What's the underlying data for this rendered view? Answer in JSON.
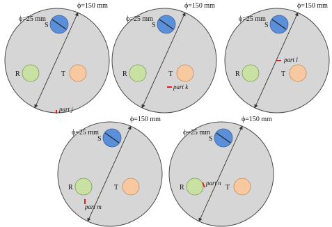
{
  "colors": {
    "disk_fill": "#d6d6d6",
    "disk_stroke": "#4a4a4a",
    "S": "#5b8fd9",
    "R": "#c9e2a4",
    "T": "#f8c8a0",
    "marker": "#e02020",
    "line": "#333333"
  },
  "labels": {
    "big_diameter": "ϕ=150 mm",
    "small_diameter": "ϕ=25 mm",
    "S": "S",
    "R": "R",
    "T": "T"
  },
  "panels": [
    {
      "part_label": "part j"
    },
    {
      "part_label": "part k"
    },
    {
      "part_label": "part l"
    },
    {
      "part_label": "part m"
    },
    {
      "part_label": "part n"
    }
  ]
}
